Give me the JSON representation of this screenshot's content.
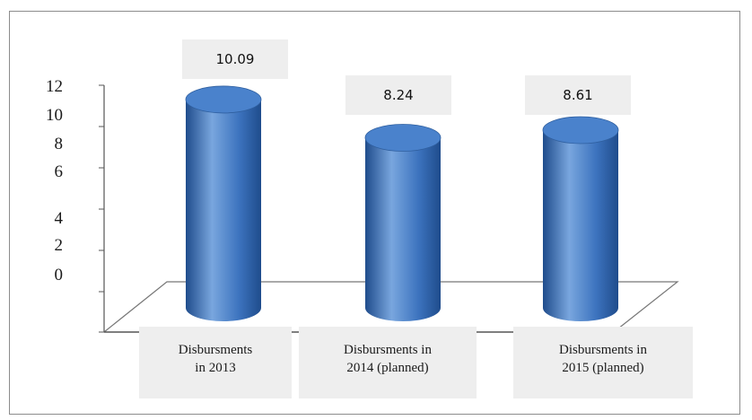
{
  "chart_data": {
    "type": "bar",
    "style": "3d-cylinder",
    "categories": [
      [
        "Disbursments",
        "in 2013"
      ],
      [
        "Disbursments in",
        "2014 (planned)"
      ],
      [
        "Disbursments in",
        "2015 (planned)"
      ]
    ],
    "values": [
      10.09,
      8.24,
      8.61
    ],
    "value_labels": [
      "10.09",
      "8.24",
      "8.61"
    ],
    "yticks": [
      "12",
      "10",
      "8",
      "6",
      "4",
      "2",
      "0"
    ],
    "ylim": [
      0,
      12
    ],
    "grid": false,
    "legend": "none",
    "colors": {
      "bar_light": "#79a6de",
      "bar_mid": "#3d74bf",
      "bar_dark": "#1f4c8c",
      "bar_top": "#4a82cc",
      "axis": "#555555",
      "label_box": "#eeeeee"
    }
  }
}
